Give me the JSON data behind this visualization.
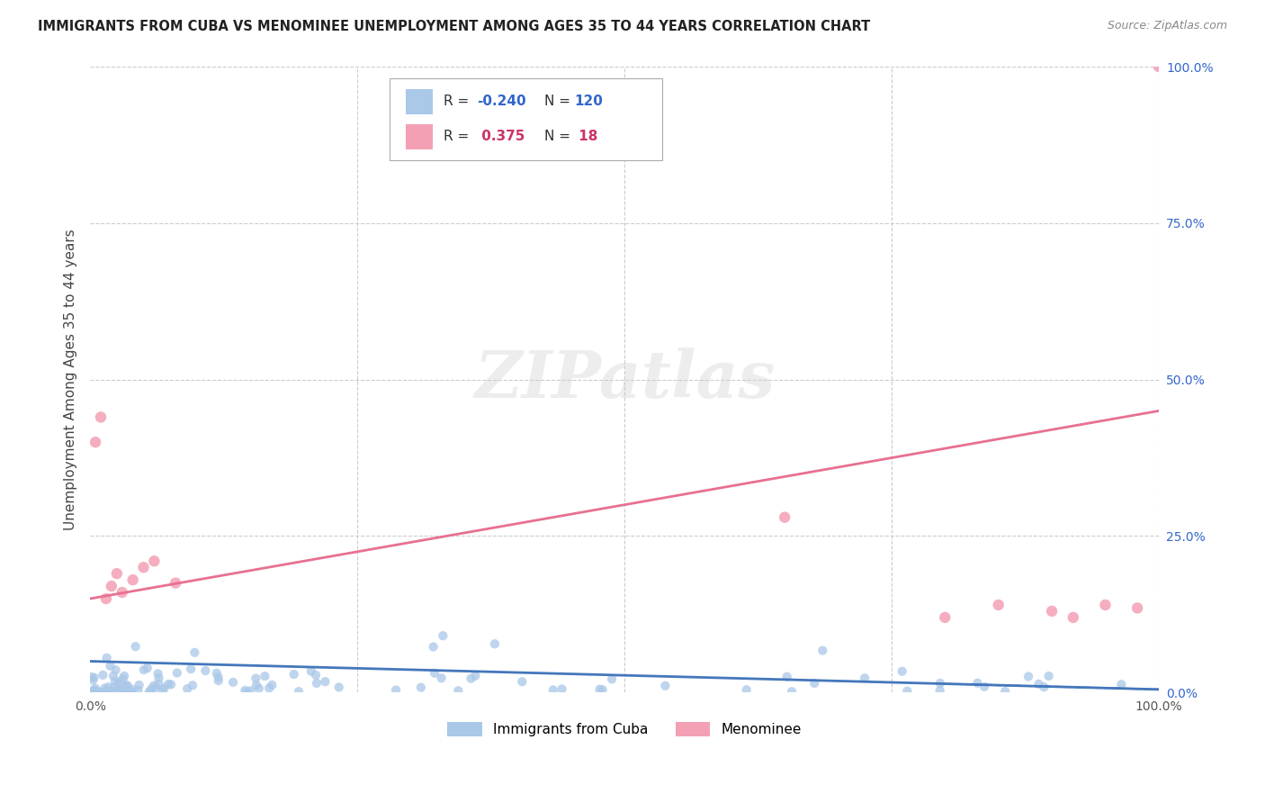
{
  "title": "IMMIGRANTS FROM CUBA VS MENOMINEE UNEMPLOYMENT AMONG AGES 35 TO 44 YEARS CORRELATION CHART",
  "source": "Source: ZipAtlas.com",
  "ylabel": "Unemployment Among Ages 35 to 44 years",
  "cuba_color": "#aac8e8",
  "menominee_color": "#f4a0b4",
  "cuba_line_color": "#4477bb",
  "menominee_line_color": "#e87090",
  "background_color": "#ffffff",
  "grid_color": "#cccccc",
  "R_cuba": -0.24,
  "R_menominee": 0.375,
  "N_cuba": 120,
  "N_menominee": 18,
  "cuba_R_color": "#3366cc",
  "menominee_R_color": "#cc3366",
  "xlim": [
    0,
    100
  ],
  "ylim": [
    0,
    100
  ],
  "menominee_x": [
    0.5,
    1.0,
    1.5,
    2.0,
    2.5,
    3.0,
    4.0,
    5.0,
    6.0,
    8.0,
    65.0,
    80.0,
    85.0,
    90.0,
    92.0,
    95.0,
    98.0,
    100.0
  ],
  "menominee_y": [
    40.0,
    44.0,
    15.0,
    17.0,
    19.0,
    16.0,
    18.0,
    20.0,
    21.0,
    17.5,
    28.0,
    12.0,
    14.0,
    13.0,
    12.0,
    14.0,
    13.5,
    100.0
  ],
  "cuba_trend_y0": 5.0,
  "cuba_trend_y1": 0.5,
  "men_trend_y0": 15.0,
  "men_trend_y1": 45.0
}
